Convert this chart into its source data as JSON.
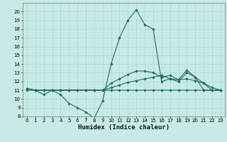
{
  "xlabel": "Humidex (Indice chaleur)",
  "bg_color": "#c8eae6",
  "line_color": "#1e6b5e",
  "grid_color": "#a8d8d0",
  "xlim": [
    -0.5,
    23.5
  ],
  "ylim": [
    8,
    21
  ],
  "yticks": [
    8,
    9,
    10,
    11,
    12,
    13,
    14,
    15,
    16,
    17,
    18,
    19,
    20
  ],
  "xticks": [
    0,
    1,
    2,
    3,
    4,
    5,
    6,
    7,
    8,
    9,
    10,
    11,
    12,
    13,
    14,
    15,
    16,
    17,
    18,
    19,
    20,
    21,
    22,
    23
  ],
  "series": [
    {
      "x": [
        0,
        1,
        2,
        3,
        4,
        5,
        6,
        7,
        8,
        9,
        10,
        11,
        12,
        13,
        14,
        15,
        16,
        17,
        18,
        19,
        20,
        21,
        22,
        23
      ],
      "y": [
        11,
        11,
        10.5,
        11,
        10.5,
        9.5,
        9,
        8.5,
        7.8,
        9.8,
        14,
        17,
        19,
        20.2,
        18.5,
        18,
        12,
        12.3,
        12,
        13,
        12.5,
        11,
        11,
        11
      ]
    },
    {
      "x": [
        0,
        1,
        2,
        3,
        4,
        5,
        6,
        7,
        8,
        9,
        10,
        11,
        12,
        13,
        14,
        15,
        16,
        17,
        18,
        19,
        20,
        21,
        22,
        23
      ],
      "y": [
        11.2,
        11,
        11,
        11,
        11,
        11,
        11,
        11,
        11,
        11,
        11,
        11,
        11,
        11,
        11,
        11,
        11,
        11,
        11,
        11,
        11,
        11,
        11,
        11
      ]
    },
    {
      "x": [
        0,
        1,
        2,
        3,
        4,
        5,
        6,
        7,
        8,
        9,
        10,
        11,
        12,
        13,
        14,
        15,
        16,
        17,
        18,
        19,
        20,
        21,
        22,
        23
      ],
      "y": [
        11.2,
        11,
        11,
        11,
        11,
        11,
        11,
        11,
        11,
        11,
        11.3,
        11.6,
        11.9,
        12.1,
        12.3,
        12.5,
        12.7,
        12.3,
        12.2,
        12.3,
        12.1,
        11.8,
        11.3,
        11
      ]
    },
    {
      "x": [
        0,
        1,
        2,
        3,
        4,
        5,
        6,
        7,
        8,
        9,
        10,
        11,
        12,
        13,
        14,
        15,
        16,
        17,
        18,
        19,
        20,
        21,
        22,
        23
      ],
      "y": [
        11.2,
        11,
        11,
        11,
        11,
        11,
        11,
        11,
        11,
        11,
        11.8,
        12.3,
        12.8,
        13.2,
        13.2,
        13.0,
        12.5,
        12.7,
        12.2,
        13.3,
        12.5,
        11.8,
        11,
        11
      ]
    }
  ]
}
